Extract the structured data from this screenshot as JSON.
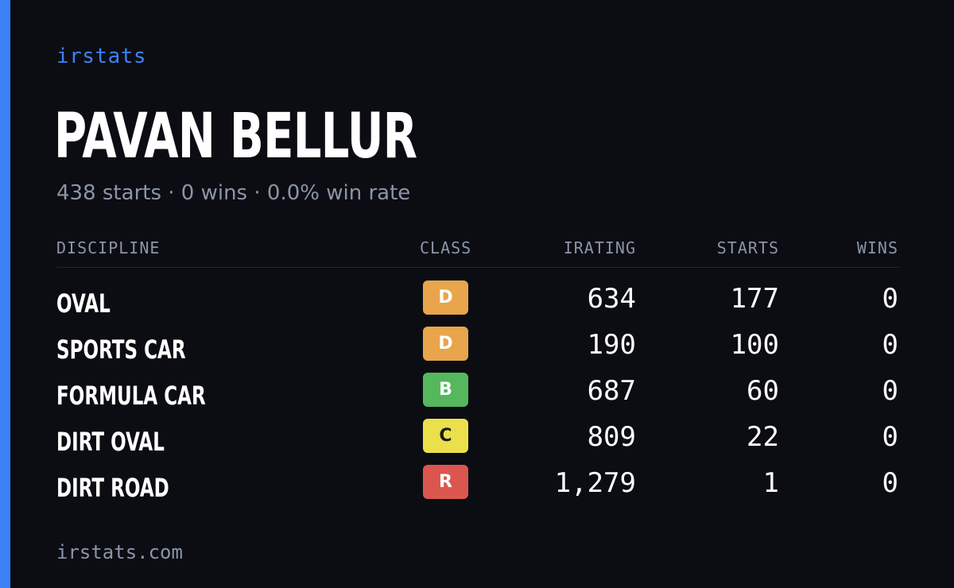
{
  "brand": "irstats",
  "driver": {
    "name": "PAVAN BELLUR",
    "summary": "438 starts · 0 wins · 0.0% win rate"
  },
  "table": {
    "headers": {
      "discipline": "DISCIPLINE",
      "class": "CLASS",
      "irating": "IRATING",
      "starts": "STARTS",
      "wins": "WINS"
    },
    "rows": [
      {
        "discipline": "OVAL",
        "class": "D",
        "class_color": "#e8a54b",
        "irating": "634",
        "starts": "177",
        "wins": "0"
      },
      {
        "discipline": "SPORTS CAR",
        "class": "D",
        "class_color": "#e8a54b",
        "irating": "190",
        "starts": "100",
        "wins": "0"
      },
      {
        "discipline": "FORMULA CAR",
        "class": "B",
        "class_color": "#55b85c",
        "irating": "687",
        "starts": "60",
        "wins": "0"
      },
      {
        "discipline": "DIRT OVAL",
        "class": "C",
        "class_color": "#ebe04b",
        "irating": "809",
        "starts": "22",
        "wins": "0"
      },
      {
        "discipline": "DIRT ROAD",
        "class": "R",
        "class_color": "#dc5650",
        "irating": "1,279",
        "starts": "1",
        "wins": "0"
      }
    ]
  },
  "footer": "irstats.com",
  "colors": {
    "background": "#0b0d13",
    "accent": "#3b82f6",
    "muted_text": "#8b95a7"
  }
}
